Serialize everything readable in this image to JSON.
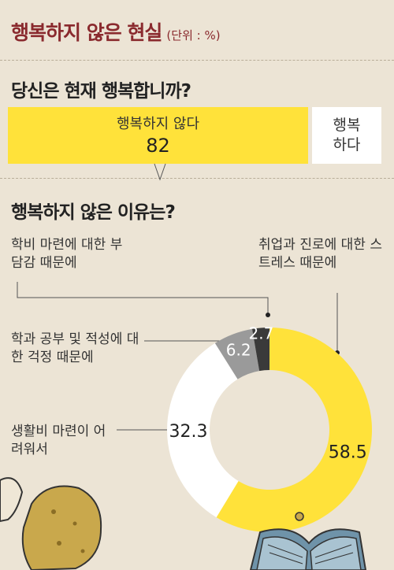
{
  "title": "행복하지 않은 현실",
  "unit": "(단위 : %)",
  "question1": "당신은 현재 행복합니까?",
  "bar": {
    "unhappy_label": "행복하지 않다",
    "unhappy_value": "82",
    "happy_label": "행복하다"
  },
  "question2": "행복하지 않은 이유는?",
  "callouts": {
    "tuition": "학비 마련에 대한 부담감 때문에",
    "job": "취업과 진로에 대한 스트레스 때문에",
    "study": "학과 공부 및 적성에 대한 걱정 때문에",
    "living": "생활비 마련이 어려워서"
  },
  "chart_data": [
    {
      "type": "bar",
      "question": "당신은 현재 행복합니까?",
      "categories": [
        "행복하지 않다",
        "행복하다"
      ],
      "values": [
        82,
        18
      ],
      "colors": [
        "#ffe23a",
        "#ffffff"
      ]
    },
    {
      "type": "pie",
      "question": "행복하지 않은 이유는?",
      "categories": [
        "취업과 진로에 대한 스트레스 때문에",
        "생활비 마련이 어려워서",
        "학과 공부 및 적성에 대한 걱정 때문에",
        "학비 마련에 대한 부담감 때문에"
      ],
      "values": [
        58.5,
        32.3,
        6.2,
        2.7
      ],
      "labels": [
        "58.5",
        "32.3",
        "6.2",
        "2.7"
      ],
      "colors": [
        "#ffe23a",
        "#ffffff",
        "#9a9a9a",
        "#3a3a3a"
      ],
      "donut": true
    }
  ]
}
